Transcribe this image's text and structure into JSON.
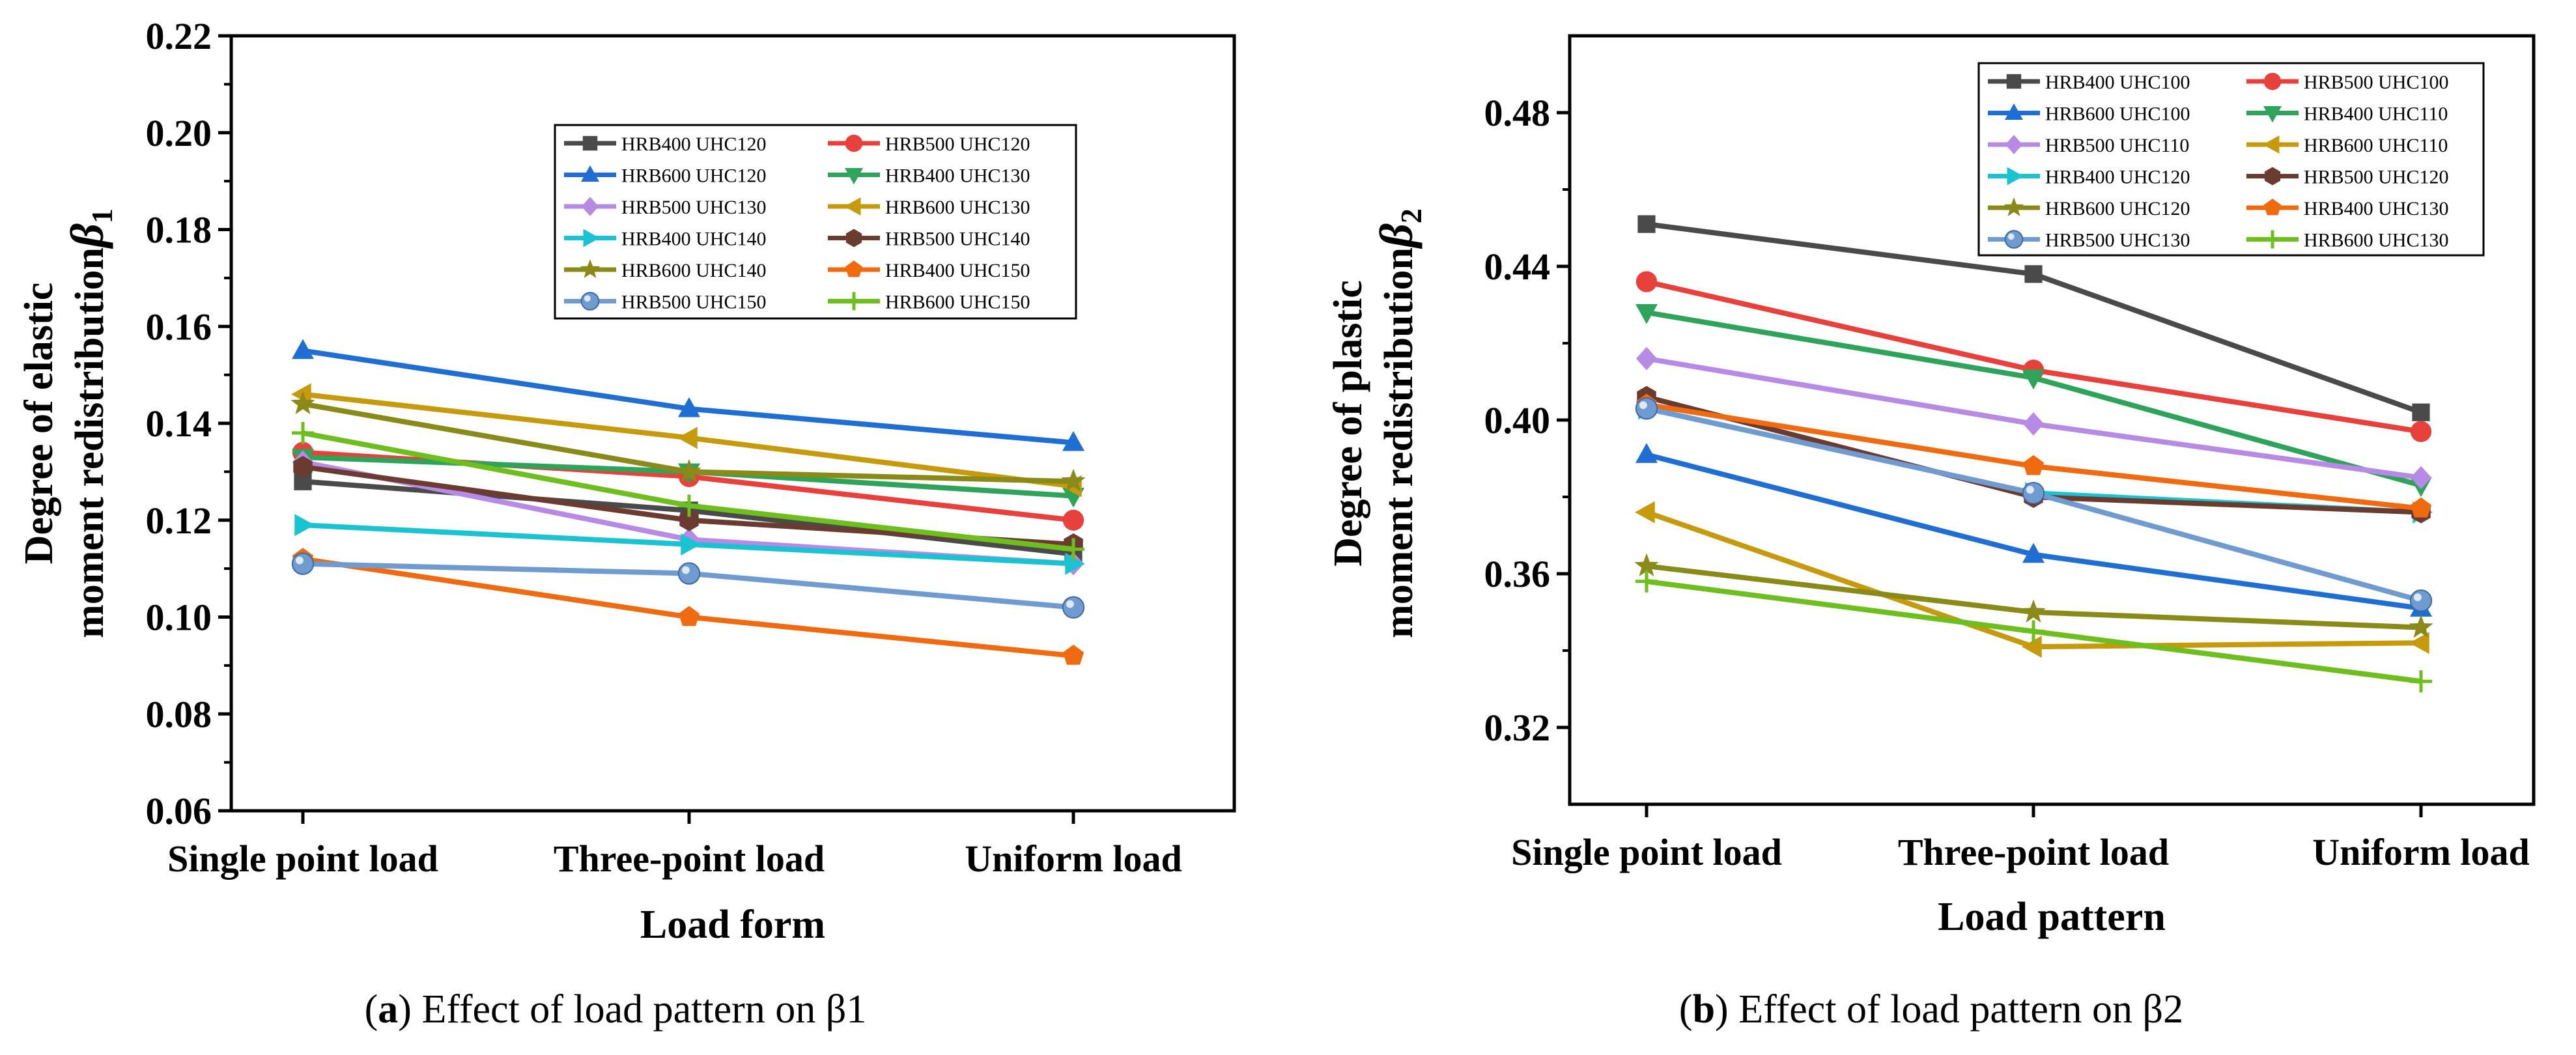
{
  "chart_data": [
    {
      "type": "line",
      "panel_label": "a",
      "caption_text": "Effect of load pattern on β1",
      "categories": [
        "Single point load",
        "Three-point load",
        "Uniform load"
      ],
      "xlabel": "Load form",
      "ylabel_line1": "Degree of elastic",
      "ylabel_line2": "moment redistribution",
      "ylabel_symbol": "β",
      "ylabel_sub": "1",
      "ylim": [
        0.06,
        0.22
      ],
      "yticks": [
        0.06,
        0.08,
        0.1,
        0.12,
        0.14,
        0.16,
        0.18,
        0.2,
        0.22
      ],
      "ytick_labels": [
        "0.06",
        "0.08",
        "0.10",
        "0.12",
        "0.14",
        "0.16",
        "0.18",
        "0.20",
        "0.22"
      ],
      "legend_position": "upper-right",
      "series": [
        {
          "name": "HRB400 UHC120",
          "color": "#4a4a4a",
          "marker": "square",
          "values": [
            0.128,
            0.122,
            0.113
          ]
        },
        {
          "name": "HRB500 UHC120",
          "color": "#e8403a",
          "marker": "circle",
          "values": [
            0.134,
            0.129,
            0.12
          ]
        },
        {
          "name": "HRB600 UHC120",
          "color": "#1f6ed4",
          "marker": "triUp",
          "values": [
            0.155,
            0.143,
            0.136
          ]
        },
        {
          "name": "HRB400 UHC130",
          "color": "#2ea35a",
          "marker": "triDown",
          "values": [
            0.133,
            0.13,
            0.125
          ]
        },
        {
          "name": "HRB500 UHC130",
          "color": "#b78ae6",
          "marker": "diamond",
          "values": [
            0.132,
            0.116,
            0.111
          ]
        },
        {
          "name": "HRB600 UHC130",
          "color": "#c79a0c",
          "marker": "triLeft",
          "values": [
            0.146,
            0.137,
            0.127
          ]
        },
        {
          "name": "HRB400 UHC140",
          "color": "#19c3d2",
          "marker": "triRight",
          "values": [
            0.119,
            0.115,
            0.111
          ]
        },
        {
          "name": "HRB500 UHC140",
          "color": "#6b3b30",
          "marker": "hexagon",
          "values": [
            0.131,
            0.12,
            0.115
          ]
        },
        {
          "name": "HRB600 UHC140",
          "color": "#8a8a18",
          "marker": "star",
          "values": [
            0.144,
            0.13,
            0.128
          ]
        },
        {
          "name": "HRB400 UHC150",
          "color": "#f06a10",
          "marker": "pentagon",
          "values": [
            0.112,
            0.1,
            0.092
          ]
        },
        {
          "name": "HRB500 UHC150",
          "color": "#6f9bd1",
          "marker": "bubble",
          "values": [
            0.111,
            0.109,
            0.102
          ]
        },
        {
          "name": "HRB600 UHC150",
          "color": "#6cbf1c",
          "marker": "plus",
          "values": [
            0.138,
            0.123,
            0.114
          ]
        }
      ]
    },
    {
      "type": "line",
      "panel_label": "b",
      "caption_text": "Effect of load pattern on β2",
      "categories": [
        "Single point load",
        "Three-point load",
        "Uniform load"
      ],
      "xlabel": "Load pattern",
      "ylabel_line1": "Degree of plastic",
      "ylabel_line2": "moment redistribution",
      "ylabel_symbol": "β",
      "ylabel_sub": "2",
      "ylim": [
        0.3,
        0.5
      ],
      "yticks": [
        0.32,
        0.36,
        0.4,
        0.44,
        0.48
      ],
      "ytick_labels": [
        "0.32",
        "0.36",
        "0.40",
        "0.44",
        "0.48"
      ],
      "legend_position": "top-right",
      "series": [
        {
          "name": "HRB400 UHC100",
          "color": "#4a4a4a",
          "marker": "square",
          "values": [
            0.451,
            0.438,
            0.402
          ]
        },
        {
          "name": "HRB500 UHC100",
          "color": "#e8403a",
          "marker": "circle",
          "values": [
            0.436,
            0.413,
            0.397
          ]
        },
        {
          "name": "HRB600 UHC100",
          "color": "#1f6ed4",
          "marker": "triUp",
          "values": [
            0.391,
            0.365,
            0.351
          ]
        },
        {
          "name": "HRB400 UHC110",
          "color": "#2ea35a",
          "marker": "triDown",
          "values": [
            0.428,
            0.411,
            0.383
          ]
        },
        {
          "name": "HRB500 UHC110",
          "color": "#b78ae6",
          "marker": "diamond",
          "values": [
            0.416,
            0.399,
            0.385
          ]
        },
        {
          "name": "HRB600 UHC110",
          "color": "#c79a0c",
          "marker": "triLeft",
          "values": [
            0.376,
            0.341,
            0.342
          ]
        },
        {
          "name": "HRB400 UHC120",
          "color": "#19c3d2",
          "marker": "triRight",
          "values": [
            0.403,
            0.381,
            0.376
          ]
        },
        {
          "name": "HRB500 UHC120",
          "color": "#6b3b30",
          "marker": "hexagon",
          "values": [
            0.406,
            0.38,
            0.376
          ]
        },
        {
          "name": "HRB600 UHC120",
          "color": "#8a8a18",
          "marker": "star",
          "values": [
            0.362,
            0.35,
            0.346
          ]
        },
        {
          "name": "HRB400 UHC130",
          "color": "#f06a10",
          "marker": "pentagon",
          "values": [
            0.404,
            0.388,
            0.377
          ]
        },
        {
          "name": "HRB500 UHC130",
          "color": "#6f9bd1",
          "marker": "bubble",
          "values": [
            0.403,
            0.381,
            0.353
          ]
        },
        {
          "name": "HRB600 UHC130",
          "color": "#6cbf1c",
          "marker": "plus",
          "values": [
            0.358,
            0.345,
            0.332
          ]
        }
      ]
    }
  ]
}
